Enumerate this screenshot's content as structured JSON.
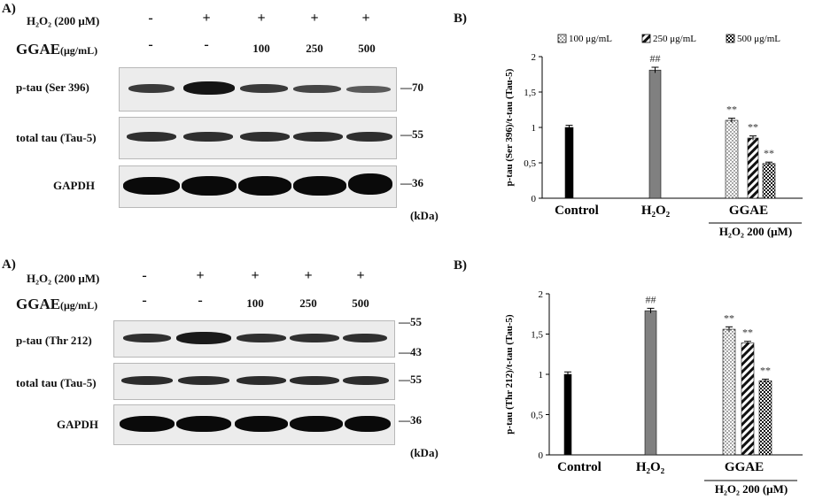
{
  "top": {
    "panel_a_letter": "A)",
    "panel_b_letter": "B)",
    "h2o2_label": "H₂O₂ (200 μM)",
    "ggae_label": "GGAE",
    "ggae_unit": "(μg/mL)",
    "h2o2_signs": [
      "-",
      "+",
      "+",
      "+",
      "+"
    ],
    "ggae_signs": [
      "-",
      "-"
    ],
    "ggae_concs": [
      "100",
      "250",
      "500"
    ],
    "blots": [
      {
        "label": "p-tau (Ser 396)",
        "mw": "70"
      },
      {
        "label": "total tau (Tau-5)",
        "mw": "55"
      },
      {
        "label": "GAPDH",
        "mw": "36"
      }
    ],
    "kda": "(kDa)"
  },
  "bottom": {
    "panel_a_letter": "A)",
    "panel_b_letter": "B)",
    "h2o2_label": "H₂O₂ (200 μM)",
    "ggae_label": "GGAE",
    "ggae_unit": "(μg/mL)",
    "h2o2_signs": [
      "-",
      "+",
      "+",
      "+",
      "+"
    ],
    "ggae_signs": [
      "-",
      "-"
    ],
    "ggae_concs": [
      "100",
      "250",
      "500"
    ],
    "blots": [
      {
        "label": "p-tau (Thr 212)",
        "mw_top": "55",
        "mw_bottom": "43"
      },
      {
        "label": "total tau (Tau-5)",
        "mw": "55"
      },
      {
        "label": "GAPDH",
        "mw": "36"
      }
    ],
    "kda": "(kDa)"
  },
  "colors": {
    "control": "#000000",
    "h2o2": "#808080",
    "pattern_ink": "#111111"
  },
  "chart_data": [
    {
      "type": "bar",
      "panel": "B) top",
      "ylabel": "p-tau (Ser 396)/t-tau (Tau-5)",
      "ylim": [
        0,
        2
      ],
      "yticks": [
        "0",
        "0,5",
        "1",
        "1,5",
        "2"
      ],
      "ytick_values": [
        0,
        0.5,
        1,
        1.5,
        2
      ],
      "legend": [
        "100 μg/mL",
        "250 μg/mL",
        "500 μg/mL"
      ],
      "legend_position": "top",
      "groups": [
        {
          "label": "Control",
          "bars": [
            {
              "value": 1.0,
              "err": 0.03,
              "fill": "solid-black"
            }
          ]
        },
        {
          "label": "H₂O₂",
          "bars": [
            {
              "value": 1.81,
              "err": 0.04,
              "fill": "solid-gray",
              "annotation": "##"
            }
          ]
        },
        {
          "label": "GGAE",
          "sublabel": "H₂O₂ 200 (μM)",
          "bars": [
            {
              "value": 1.1,
              "err": 0.03,
              "fill": "dots",
              "annotation": "**"
            },
            {
              "value": 0.85,
              "err": 0.03,
              "fill": "diagonal",
              "annotation": "**"
            },
            {
              "value": 0.49,
              "err": 0.02,
              "fill": "checker",
              "annotation": "**"
            }
          ]
        }
      ]
    },
    {
      "type": "bar",
      "panel": "B) bottom",
      "ylabel": "p-tau (Thr 212)/t-tau (Tau-5)",
      "ylim": [
        0,
        2
      ],
      "yticks": [
        "0",
        "0,5",
        "1",
        "1,5",
        "2"
      ],
      "ytick_values": [
        0,
        0.5,
        1,
        1.5,
        2
      ],
      "legend": [],
      "groups": [
        {
          "label": "Control",
          "bars": [
            {
              "value": 1.0,
              "err": 0.03,
              "fill": "solid-black"
            }
          ]
        },
        {
          "label": "H₂O₂",
          "bars": [
            {
              "value": 1.79,
              "err": 0.03,
              "fill": "solid-gray",
              "annotation": "##"
            }
          ]
        },
        {
          "label": "GGAE",
          "sublabel": "H₂O₂ 200 (μM)",
          "bars": [
            {
              "value": 1.56,
              "err": 0.03,
              "fill": "dots",
              "annotation": "**"
            },
            {
              "value": 1.39,
              "err": 0.02,
              "fill": "diagonal",
              "annotation": "**"
            },
            {
              "value": 0.92,
              "err": 0.02,
              "fill": "checker",
              "annotation": "**"
            }
          ]
        }
      ]
    }
  ]
}
